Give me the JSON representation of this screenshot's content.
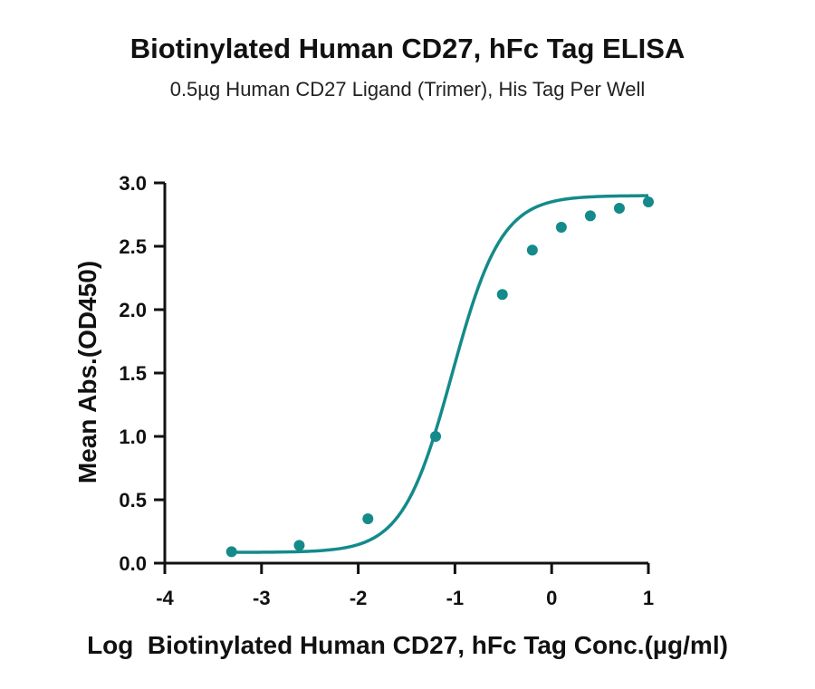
{
  "chart_data": {
    "type": "scatter",
    "title": "Biotinylated Human CD27, hFc Tag ELISA",
    "subtitle": "0.5µg Human CD27 Ligand (Trimer), His Tag Per Well",
    "xlabel": "Log  Biotinylated Human CD27, hFc Tag Conc.(µg/ml)",
    "ylabel": "Mean Abs.(OD450)",
    "xlim": [
      -4,
      1
    ],
    "ylim": [
      0,
      3
    ],
    "x_ticks": [
      -4,
      -3,
      -2,
      -1,
      0,
      1
    ],
    "x_tick_labels": [
      "-4",
      "-3",
      "-2",
      "-1",
      "0",
      "1"
    ],
    "y_ticks": [
      0,
      0.5,
      1,
      1.5,
      2,
      2.5,
      3
    ],
    "y_tick_labels": [
      "0.0",
      "0.5",
      "1.0",
      "1.5",
      "2.0",
      "2.5",
      "3.0"
    ],
    "grid": false,
    "legend": "none",
    "color": "#148a8a",
    "series": [
      {
        "points": [
          {
            "x": -3.31,
            "y": 0.09
          },
          {
            "x": -2.61,
            "y": 0.14
          },
          {
            "x": -1.9,
            "y": 0.35
          },
          {
            "x": -1.2,
            "y": 1.0
          },
          {
            "x": -0.51,
            "y": 2.12
          },
          {
            "x": -0.2,
            "y": 2.47
          },
          {
            "x": 0.1,
            "y": 2.65
          },
          {
            "x": 0.4,
            "y": 2.74
          },
          {
            "x": 0.7,
            "y": 2.8
          },
          {
            "x": 1.0,
            "y": 2.85
          }
        ],
        "fit": "four-parameter logistic curve through the points"
      }
    ]
  }
}
